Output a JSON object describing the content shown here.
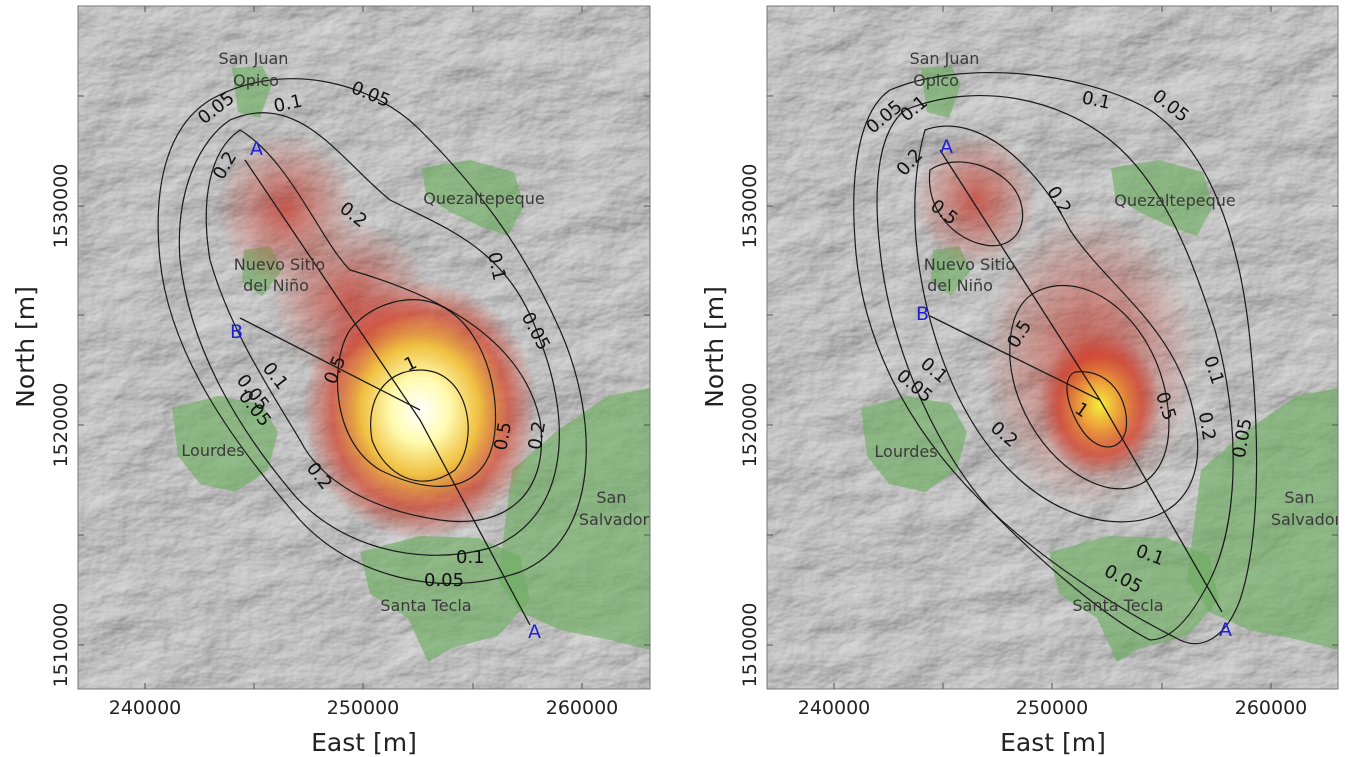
{
  "maps": [
    {
      "town_labels": [
        {
          "lines": [
            "San Juan",
            "Opico"
          ]
        },
        {
          "lines": [
            "Quezaltepeque"
          ]
        },
        {
          "lines": [
            "Nuevo Sitio",
            "del Niño"
          ]
        },
        {
          "lines": [
            "Lourdes"
          ]
        },
        {
          "lines": [
            "San",
            "Salvador"
          ]
        },
        {
          "lines": [
            "Santa Tecla"
          ]
        }
      ],
      "contour_levels": [
        "0.05",
        "0.1",
        "0.05",
        "0.2",
        "0.2",
        "0.1",
        "0.05",
        "0.5",
        "1",
        "0.5",
        "0.2",
        "0.05",
        "0.1",
        "0.05",
        "0.2",
        "0.1",
        "0.05"
      ],
      "section_points": [
        "A",
        "B",
        "A"
      ]
    },
    {
      "town_labels": [
        {
          "lines": [
            "San Juan",
            "Opico"
          ]
        },
        {
          "lines": [
            "Quezaltepeque"
          ]
        },
        {
          "lines": [
            "Nuevo Sitio",
            "del Niño"
          ]
        },
        {
          "lines": [
            "Lourdes"
          ]
        },
        {
          "lines": [
            "San",
            "Salvador"
          ]
        },
        {
          "lines": [
            "Santa Tecla"
          ]
        }
      ],
      "contour_levels": [
        "0.05",
        "0.1",
        "0.1",
        "0.05",
        "0.2",
        "0.5",
        "0.2",
        "0.5",
        "1",
        "0.5",
        "0.1",
        "0.2",
        "0.05",
        "0.05",
        "0.1",
        "0.2",
        "0.1",
        "0.05"
      ],
      "section_points": [
        "A",
        "B",
        "A"
      ]
    }
  ],
  "axes": {
    "xlabel": "East [m]",
    "ylabel": "North [m]",
    "xticks": [
      "240000",
      "250000",
      "260000"
    ],
    "yticks": [
      "1510000",
      "1520000",
      "1530000"
    ]
  },
  "colors": {
    "hillshade": "#8e8e8e",
    "urban": "#6fae63",
    "hazard_high": "#ffffd8",
    "hazard_mid": "#f0c030",
    "hazard_low": "#d23c28",
    "section_label": "#1f1fd6",
    "contour": "#1a1a1a"
  }
}
